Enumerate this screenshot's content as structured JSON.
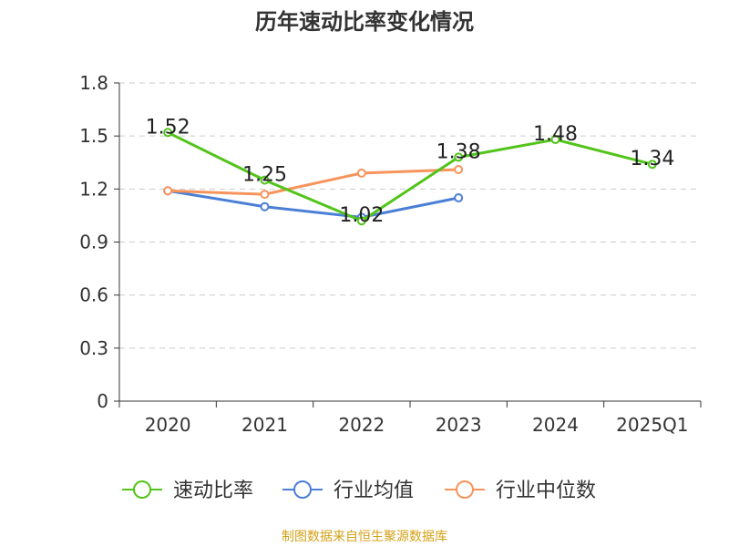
{
  "chart_data": {
    "type": "line",
    "title": "历年速动比率变化情况",
    "categories": [
      "2020",
      "2021",
      "2022",
      "2023",
      "2024",
      "2025Q1"
    ],
    "ylim": [
      0,
      1.8
    ],
    "yticks": [
      "0",
      "0.3",
      "0.6",
      "0.9",
      "1.2",
      "1.5",
      "1.8"
    ],
    "grid": true,
    "legend_position": "bottom",
    "series": [
      {
        "name": "速动比率",
        "color": "#52c41a",
        "values": [
          1.52,
          1.25,
          1.02,
          1.38,
          1.48,
          1.34
        ],
        "labels": [
          "1.52",
          "1.25",
          "1.02",
          "1.38",
          "1.48",
          "1.34"
        ]
      },
      {
        "name": "行业均值",
        "color": "#4b7fd6",
        "values": [
          1.19,
          1.1,
          1.04,
          1.15,
          null,
          null
        ]
      },
      {
        "name": "行业中位数",
        "color": "#f7945b",
        "values": [
          1.19,
          1.17,
          1.29,
          1.31,
          null,
          null
        ]
      }
    ]
  },
  "source_text": "制图数据来自恒生聚源数据库",
  "colors": {
    "axis": "#333333",
    "grid": "#cccccc",
    "title": "#333333",
    "source": "#d4a017"
  }
}
